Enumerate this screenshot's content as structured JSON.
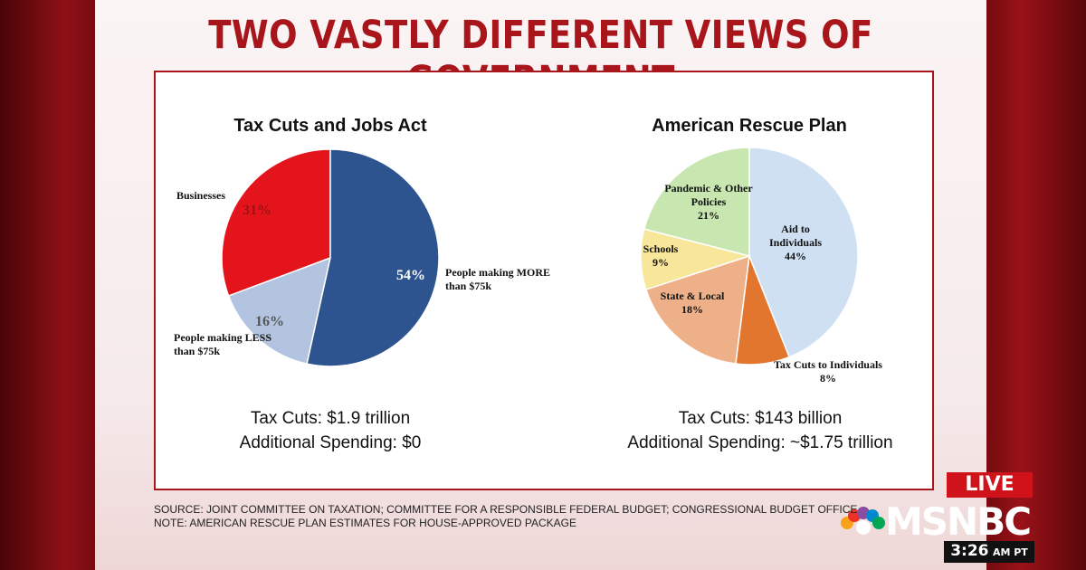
{
  "title": "TWO VASTLY DIFFERENT VIEWS OF GOVERNMENT",
  "chart_data": [
    {
      "type": "pie",
      "title": "Tax Cuts and Jobs Act",
      "categories": [
        "People making MORE than $75k",
        "People making LESS than $75k",
        "Businesses"
      ],
      "values": [
        54,
        16,
        31
      ],
      "value_labels": [
        "54%",
        "16%",
        "31%"
      ],
      "colors": [
        "#2e5490",
        "#b3c4e0",
        "#e3141c"
      ],
      "notes": [
        "Tax Cuts: $1.9 trillion",
        "Additional Spending: $0"
      ]
    },
    {
      "type": "pie",
      "title": "American Rescue Plan",
      "categories": [
        "Aid to Individuals",
        "Tax Cuts to Individuals",
        "State & Local",
        "Schools",
        "Pandemic & Other Policies"
      ],
      "values": [
        44,
        8,
        18,
        9,
        21
      ],
      "value_labels": [
        "44%",
        "8%",
        "18%",
        "9%",
        "21%"
      ],
      "colors": [
        "#cfe0f3",
        "#e2762f",
        "#eeb088",
        "#f8e69a",
        "#c7e6b0"
      ],
      "notes": [
        "Tax Cuts: $143 billion",
        "Additional Spending: ~$1.75 trillion"
      ]
    }
  ],
  "source": "SOURCE: JOINT COMMITTEE ON TAXATION; COMMITTEE FOR A RESPONSIBLE FEDERAL BUDGET; CONGRESSIONAL BUDGET OFFICE",
  "note": "NOTE: AMERICAN RESCUE PLAN ESTIMATES FOR HOUSE-APPROVED PACKAGE",
  "live": "LIVE",
  "network": "MSNBC",
  "time": "3:26",
  "time_zone": "AM PT"
}
